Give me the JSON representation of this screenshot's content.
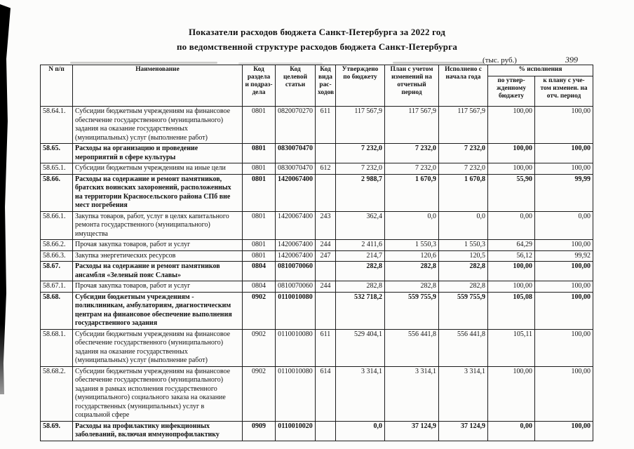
{
  "page": {
    "title_line1": "Показатели расходов бюджета Санкт-Петербурга за 2022 год",
    "title_line2": "по ведомственной структуре расходов бюджета Санкт-Петербурга",
    "units": "(тыс. руб.)",
    "page_number": "399"
  },
  "table": {
    "columns": {
      "num": "N п/п",
      "name": "Наименование",
      "razdel": "Код раздела и подраз- дела",
      "statya": "Код целевой статьи",
      "vid": "Код вида рас- ходов",
      "utv": "Утверждено по бюджету",
      "plan": "План с учетом изменений на отчетный период",
      "isp": "Исполнено с начала года",
      "pct": "% исполнения",
      "pct_utv": "по утвер- жденному бюджету",
      "pct_plan": "к плану с уче- том изменен. на отч. период"
    },
    "rows": [
      {
        "num": "58.64.1.",
        "name": "Субсидии бюджетным учреждениям на финансовое обеспечение государственного (муниципального) задания на оказание государственных (муниципальных) услуг (выполнение работ)",
        "razdel": "0801",
        "statya": "0820070270",
        "vid": "611",
        "utv": "117 567,9",
        "plan": "117 567,9",
        "isp": "117 567,9",
        "pct_utv": "100,00",
        "pct_plan": "100,00",
        "bold": false
      },
      {
        "num": "58.65.",
        "name": "Расходы на организацию и проведение мероприятий в сфере культуры",
        "razdel": "0801",
        "statya": "0830070470",
        "vid": "",
        "utv": "7 232,0",
        "plan": "7 232,0",
        "isp": "7 232,0",
        "pct_utv": "100,00",
        "pct_plan": "100,00",
        "bold": true
      },
      {
        "num": "58.65.1.",
        "name": "Субсидии бюджетным учреждениям на иные цели",
        "razdel": "0801",
        "statya": "0830070470",
        "vid": "612",
        "utv": "7 232,0",
        "plan": "7 232,0",
        "isp": "7 232,0",
        "pct_utv": "100,00",
        "pct_plan": "100,00",
        "bold": false
      },
      {
        "num": "58.66.",
        "name": "Расходы на содержание и ремонт памятников, братских воинских захоронений, расположенных на территории Красносельского района СПб вне мест погребения",
        "razdel": "0801",
        "statya": "1420067400",
        "vid": "",
        "utv": "2 988,7",
        "plan": "1 670,9",
        "isp": "1 670,8",
        "pct_utv": "55,90",
        "pct_plan": "99,99",
        "bold": true
      },
      {
        "num": "58.66.1.",
        "name": "Закупка товаров, работ, услуг в целях капитального ремонта государственного (муниципального) имущества",
        "razdel": "0801",
        "statya": "1420067400",
        "vid": "243",
        "utv": "362,4",
        "plan": "0,0",
        "isp": "0,0",
        "pct_utv": "0,00",
        "pct_plan": "0,00",
        "bold": false
      },
      {
        "num": "58.66.2.",
        "name": "Прочая закупка товаров, работ и услуг",
        "razdel": "0801",
        "statya": "1420067400",
        "vid": "244",
        "utv": "2 411,6",
        "plan": "1 550,3",
        "isp": "1 550,3",
        "pct_utv": "64,29",
        "pct_plan": "100,00",
        "bold": false
      },
      {
        "num": "58.66.3.",
        "name": "Закупка энергетических ресурсов",
        "razdel": "0801",
        "statya": "1420067400",
        "vid": "247",
        "utv": "214,7",
        "plan": "120,6",
        "isp": "120,5",
        "pct_utv": "56,12",
        "pct_plan": "99,92",
        "bold": false
      },
      {
        "num": "58.67.",
        "name": "Расходы на содержание и ремонт памятников ансамбля «Зеленый пояс Славы»",
        "razdel": "0804",
        "statya": "0810070060",
        "vid": "",
        "utv": "282,8",
        "plan": "282,8",
        "isp": "282,8",
        "pct_utv": "100,00",
        "pct_plan": "100,00",
        "bold": true
      },
      {
        "num": "58.67.1.",
        "name": "Прочая закупка товаров, работ и услуг",
        "razdel": "0804",
        "statya": "0810070060",
        "vid": "244",
        "utv": "282,8",
        "plan": "282,8",
        "isp": "282,8",
        "pct_utv": "100,00",
        "pct_plan": "100,00",
        "bold": false
      },
      {
        "num": "58.68.",
        "name": "Субсидии бюджетным учреждениям - поликлиникам, амбулаториям, диагностическим центрам на финансовое обеспечение выполнения государственного задания",
        "razdel": "0902",
        "statya": "0110010080",
        "vid": "",
        "utv": "532 718,2",
        "plan": "559 755,9",
        "isp": "559 755,9",
        "pct_utv": "105,08",
        "pct_plan": "100,00",
        "bold": true
      },
      {
        "num": "58.68.1.",
        "name": "Субсидии бюджетным учреждениям на финансовое обеспечение государственного (муниципального) задания на оказание государственных (муниципальных) услуг (выполнение работ)",
        "razdel": "0902",
        "statya": "0110010080",
        "vid": "611",
        "utv": "529 404,1",
        "plan": "556 441,8",
        "isp": "556 441,8",
        "pct_utv": "105,11",
        "pct_plan": "100,00",
        "bold": false
      },
      {
        "num": "58.68.2.",
        "name": "Субсидии бюджетным учреждениям на финансовое обеспечение государственного (муниципального) задания в рамках исполнения государственного (муниципального) социального заказа на оказание государственных (муниципальных) услуг в социальной сфере",
        "razdel": "0902",
        "statya": "0110010080",
        "vid": "614",
        "utv": "3 314,1",
        "plan": "3 314,1",
        "isp": "3 314,1",
        "pct_utv": "100,00",
        "pct_plan": "100,00",
        "bold": false
      },
      {
        "num": "58.69.",
        "name": "Расходы на профилактику инфекционных заболеваний, включая иммунопрофилактику",
        "razdel": "0909",
        "statya": "0110010020",
        "vid": "",
        "utv": "0,0",
        "plan": "37 124,9",
        "isp": "37 124,9",
        "pct_utv": "0,00",
        "pct_plan": "100,00",
        "bold": true
      }
    ]
  }
}
